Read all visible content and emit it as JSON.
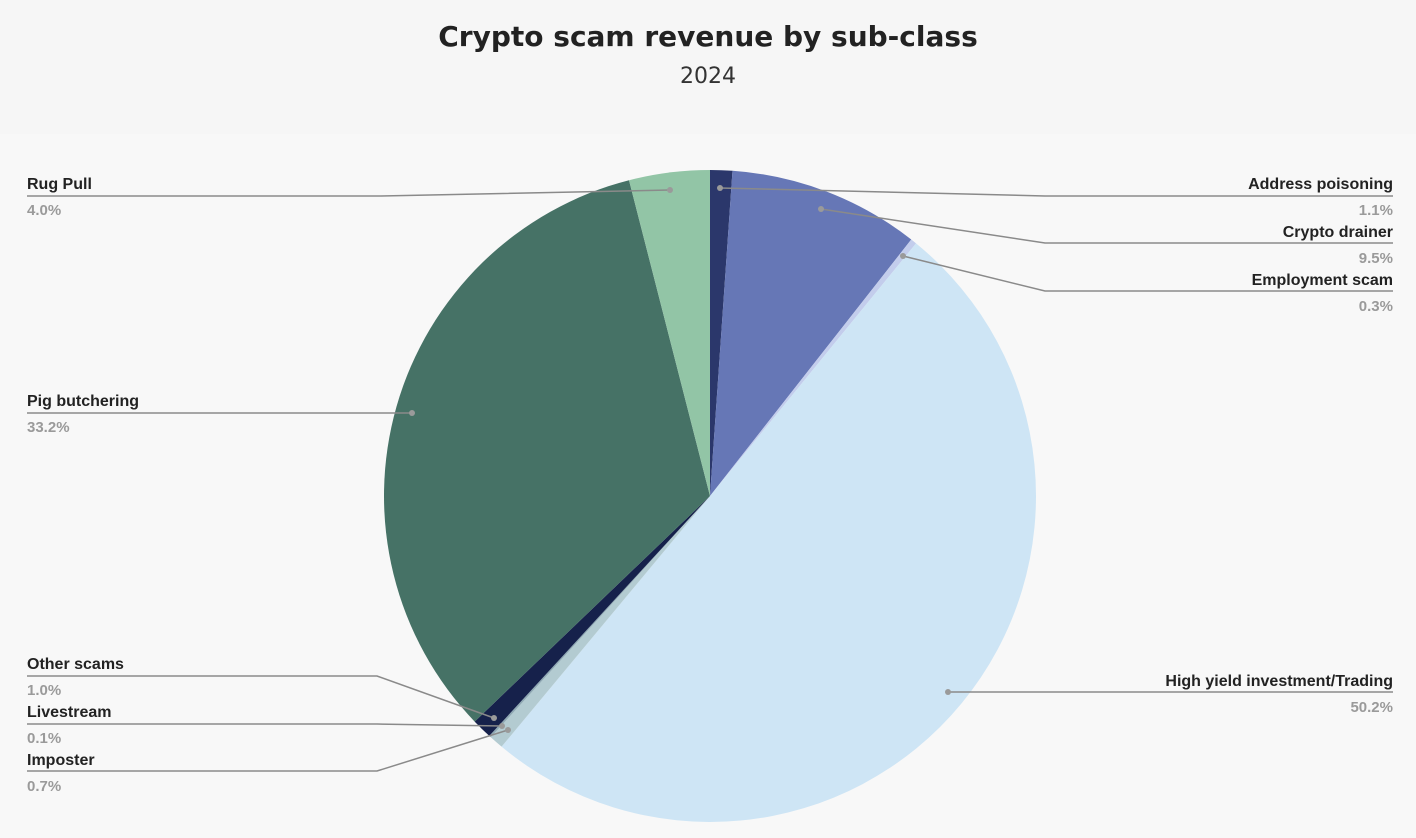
{
  "chart_data": {
    "type": "pie",
    "title": "Crypto scam revenue by sub-class",
    "subtitle": "2024",
    "start_angle": "12 o'clock, clockwise",
    "legend": "none (leader-line labels)",
    "slices": [
      {
        "label": "Address poisoning",
        "value": 1.1,
        "pct_label": "1.1%",
        "color": "#2b376b"
      },
      {
        "label": "Crypto drainer",
        "value": 9.5,
        "pct_label": "9.5%",
        "color": "#6677b6"
      },
      {
        "label": "Employment scam",
        "value": 0.3,
        "pct_label": "0.3%",
        "color": "#c3cdec"
      },
      {
        "label": "High yield investment/Trading",
        "value": 50.2,
        "pct_label": "50.2%",
        "color": "#cee5f5"
      },
      {
        "label": "Imposter",
        "value": 0.7,
        "pct_label": "0.7%",
        "color": "#b3cbd1"
      },
      {
        "label": "Livestream",
        "value": 0.1,
        "pct_label": "0.1%",
        "color": "#8fa9b4"
      },
      {
        "label": "Other scams",
        "value": 1.0,
        "pct_label": "1.0%",
        "color": "#16214b"
      },
      {
        "label": "Pig butchering",
        "value": 33.2,
        "pct_label": "33.2%",
        "color": "#467266"
      },
      {
        "label": "Rug Pull",
        "value": 4.0,
        "pct_label": "4.0%",
        "color": "#92c5a6"
      }
    ]
  }
}
